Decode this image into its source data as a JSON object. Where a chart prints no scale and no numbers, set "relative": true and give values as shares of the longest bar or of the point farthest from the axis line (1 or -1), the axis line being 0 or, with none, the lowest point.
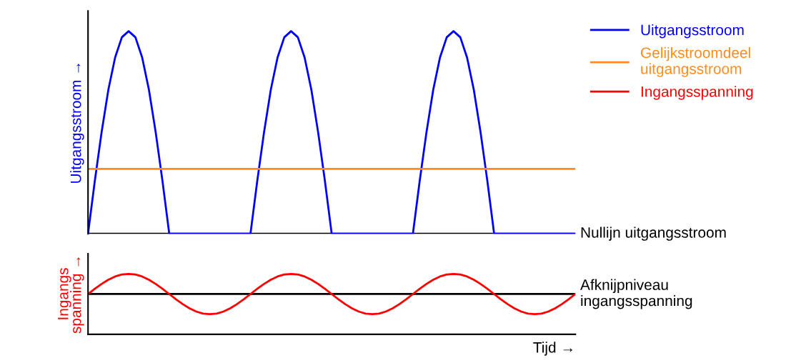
{
  "chart_data": [
    {
      "type": "line",
      "relative": true,
      "ylabel": "Uitgangsstroom →",
      "legend": "right",
      "grid": false,
      "marker": "none",
      "line_style": "solid",
      "categories": [
        null,
        null,
        null,
        null,
        null,
        null,
        null,
        null,
        null,
        null,
        null,
        null,
        null,
        null,
        null,
        null,
        null,
        null,
        null,
        null,
        null,
        null,
        null,
        null,
        null,
        null,
        null,
        null,
        null,
        null,
        null,
        null,
        null,
        null,
        null,
        null,
        null,
        null,
        null,
        null,
        null,
        null,
        null,
        null,
        null,
        null,
        null,
        null,
        null,
        null,
        null,
        null,
        null,
        null,
        null,
        null,
        null,
        null,
        null,
        null,
        null,
        null,
        null,
        null,
        null,
        null,
        null,
        null,
        null,
        null,
        null,
        null,
        null
      ],
      "series": [
        {
          "name": "Uitgangsstroom",
          "color": "#0000ff",
          "values": [
            0,
            0.26,
            0.5,
            0.71,
            0.87,
            0.97,
            1,
            0.97,
            0.87,
            0.71,
            0.5,
            0.26,
            0,
            0,
            0,
            0,
            0,
            0,
            0,
            0,
            0,
            0,
            0,
            0,
            0,
            0.26,
            0.5,
            0.71,
            0.87,
            0.97,
            1,
            0.97,
            0.87,
            0.71,
            0.5,
            0.26,
            0,
            0,
            0,
            0,
            0,
            0,
            0,
            0,
            0,
            0,
            0,
            0,
            0,
            0.26,
            0.5,
            0.71,
            0.87,
            0.97,
            1,
            0.97,
            0.87,
            0.71,
            0.5,
            0.26,
            0,
            0,
            0,
            0,
            0,
            0,
            0,
            0,
            0,
            0,
            0,
            0,
            0
          ]
        },
        {
          "name": "Gelijkstroomdeel\nuitgangsstroom",
          "color": "#ff8c1a",
          "values": [
            0.32,
            0.32,
            0.32,
            0.32,
            0.32,
            0.32,
            0.32,
            0.32,
            0.32,
            0.32,
            0.32,
            0.32,
            0.32,
            0.32,
            0.32,
            0.32,
            0.32,
            0.32,
            0.32,
            0.32,
            0.32,
            0.32,
            0.32,
            0.32,
            0.32,
            0.32,
            0.32,
            0.32,
            0.32,
            0.32,
            0.32,
            0.32,
            0.32,
            0.32,
            0.32,
            0.32,
            0.32,
            0.32,
            0.32,
            0.32,
            0.32,
            0.32,
            0.32,
            0.32,
            0.32,
            0.32,
            0.32,
            0.32,
            0.32,
            0.32,
            0.32,
            0.32,
            0.32,
            0.32,
            0.32,
            0.32,
            0.32,
            0.32,
            0.32,
            0.32,
            0.32,
            0.32,
            0.32,
            0.32,
            0.32,
            0.32,
            0.32,
            0.32,
            0.32,
            0.32,
            0.32,
            0.32,
            0.32
          ]
        }
      ],
      "ref_lines": [
        {
          "axis": "y",
          "value": 0,
          "label": "Nullijn uitgangsstroom",
          "color": "#000000"
        }
      ]
    },
    {
      "type": "line",
      "relative": true,
      "ylabel": "Ingangs\nspanning →",
      "xlabel": "Tijd →",
      "grid": false,
      "marker": "none",
      "line_style": "solid",
      "categories": [
        null,
        null,
        null,
        null,
        null,
        null,
        null,
        null,
        null,
        null,
        null,
        null,
        null,
        null,
        null,
        null,
        null,
        null,
        null,
        null,
        null,
        null,
        null,
        null,
        null,
        null,
        null,
        null,
        null,
        null,
        null,
        null,
        null,
        null,
        null,
        null,
        null,
        null,
        null,
        null,
        null,
        null,
        null,
        null,
        null,
        null,
        null,
        null,
        null,
        null,
        null,
        null,
        null,
        null,
        null,
        null,
        null,
        null,
        null,
        null,
        null,
        null,
        null,
        null,
        null,
        null,
        null,
        null,
        null,
        null,
        null,
        null,
        null
      ],
      "series": [
        {
          "name": "Ingangsspanning",
          "color": "#ff0000",
          "values": [
            0,
            0.26,
            0.5,
            0.71,
            0.87,
            0.97,
            1,
            0.97,
            0.87,
            0.71,
            0.5,
            0.26,
            0,
            -0.26,
            -0.5,
            -0.71,
            -0.87,
            -0.97,
            -1,
            -0.97,
            -0.87,
            -0.71,
            -0.5,
            -0.26,
            0,
            0.26,
            0.5,
            0.71,
            0.87,
            0.97,
            1,
            0.97,
            0.87,
            0.71,
            0.5,
            0.26,
            0,
            -0.26,
            -0.5,
            -0.71,
            -0.87,
            -0.97,
            -1,
            -0.97,
            -0.87,
            -0.71,
            -0.5,
            -0.26,
            0,
            0.26,
            0.5,
            0.71,
            0.87,
            0.97,
            1,
            0.97,
            0.87,
            0.71,
            0.5,
            0.26,
            0,
            -0.26,
            -0.5,
            -0.71,
            -0.87,
            -0.97,
            -1,
            -0.97,
            -0.87,
            -0.71,
            -0.5,
            -0.26,
            0
          ]
        }
      ],
      "ref_lines": [
        {
          "axis": "y",
          "value": 0,
          "label": "Afknijpniveau\ningangsspanning",
          "color": "#000000"
        }
      ]
    }
  ]
}
